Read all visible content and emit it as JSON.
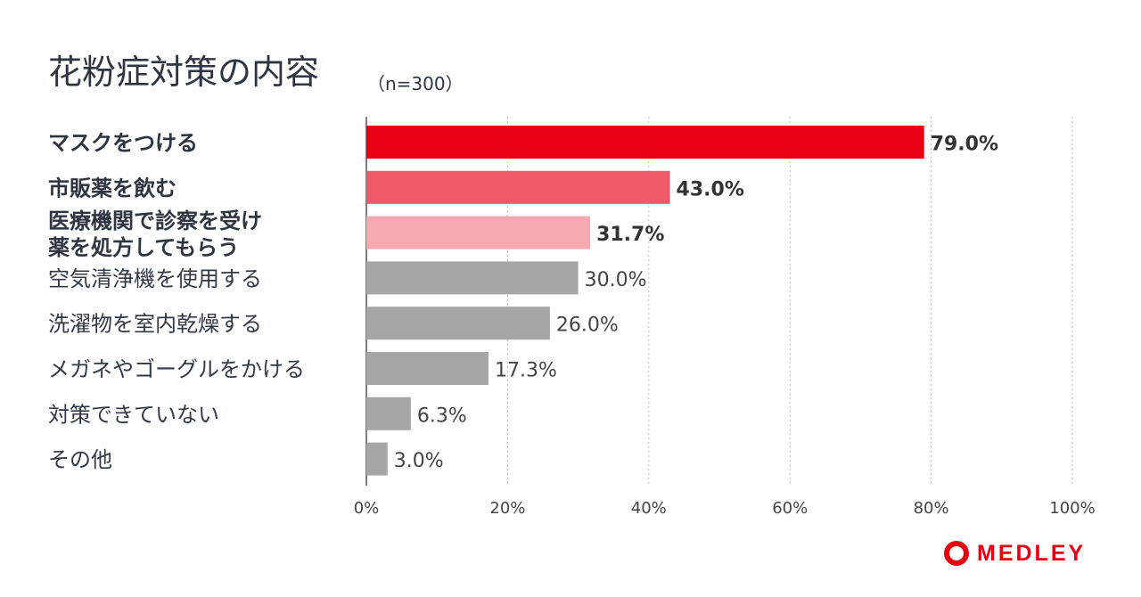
{
  "title": "花粉症対策の内容",
  "subtitle": "（n=300）",
  "logo_text": "MEDLEY",
  "colors": {
    "red": "#e60012",
    "mid_red": "#ee5a68",
    "pink": "#f6a9b1",
    "gray": "#a6a6a6",
    "grid": "#bdbdbd"
  },
  "chart_data": {
    "type": "bar",
    "orientation": "horizontal",
    "title": "花粉症対策の内容",
    "subtitle": "（n=300）",
    "categories": [
      [
        "マスクをつける"
      ],
      [
        "市販薬を飲む"
      ],
      [
        "医療機関で診察を受け",
        "薬を処方してもらう"
      ],
      [
        "空気清浄機を使用する"
      ],
      [
        "洗濯物を室内乾燥する"
      ],
      [
        "メガネやゴーグルをかける"
      ],
      [
        "対策できていない"
      ],
      [
        "その他"
      ]
    ],
    "values": [
      79.0,
      43.0,
      31.7,
      30.0,
      26.0,
      17.3,
      6.3,
      3.0
    ],
    "value_labels": [
      "79.0%",
      "43.0%",
      "31.7%",
      "30.0%",
      "26.0%",
      "17.3%",
      "6.3%",
      "3.0%"
    ],
    "bar_colors": [
      "red",
      "mid_red",
      "pink",
      "gray",
      "gray",
      "gray",
      "gray",
      "gray"
    ],
    "highlighted": [
      true,
      true,
      true,
      false,
      false,
      false,
      false,
      false
    ],
    "x_ticks": [
      "0%",
      "20%",
      "40%",
      "60%",
      "80%",
      "100%"
    ],
    "xlim": [
      0,
      100
    ],
    "grid": "vertical-dotted"
  }
}
